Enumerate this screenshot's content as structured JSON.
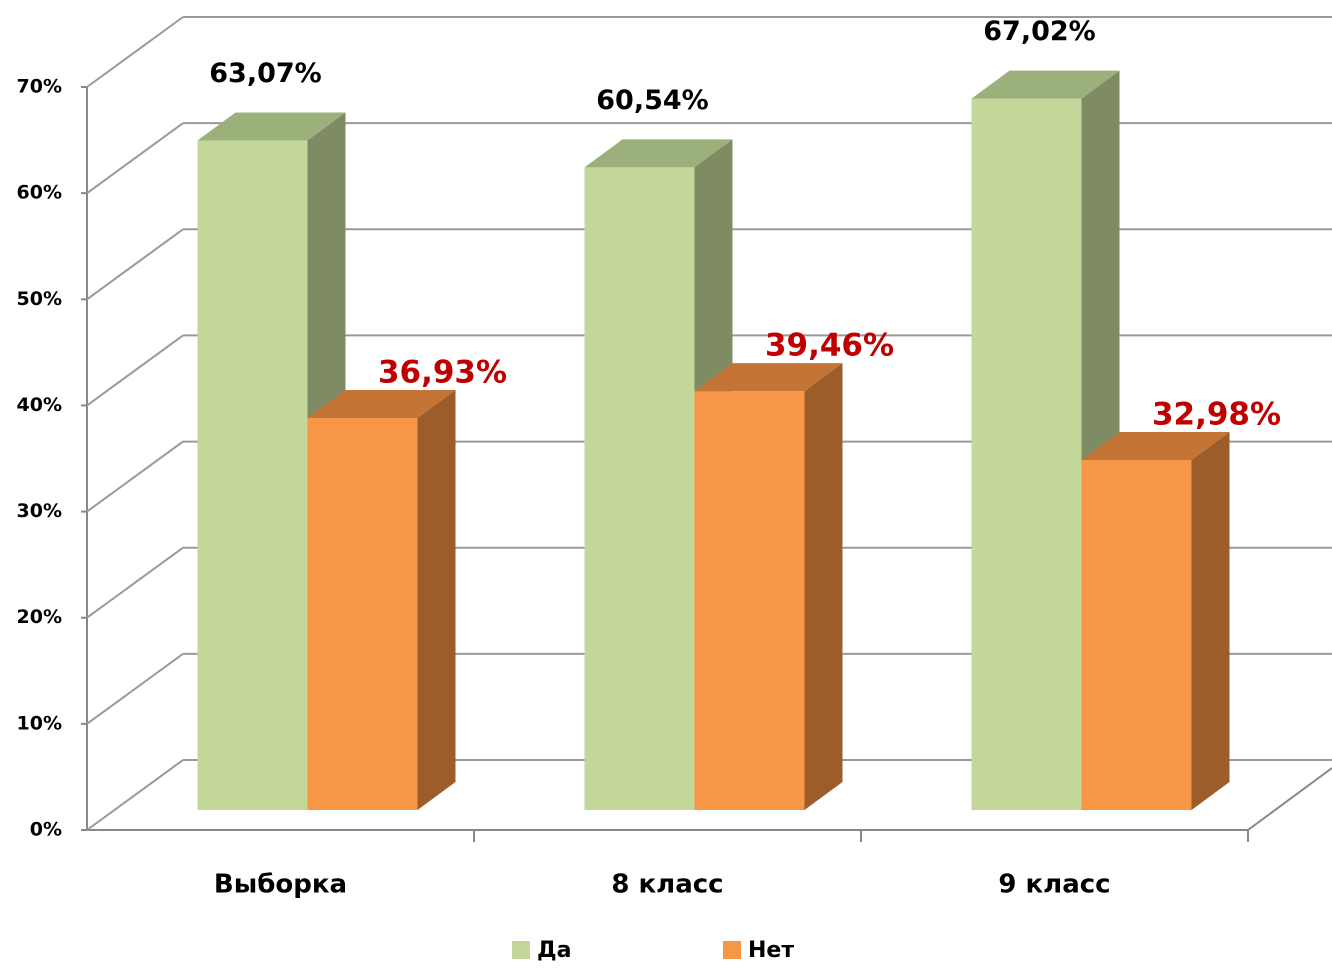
{
  "chart_data": {
    "type": "bar3d",
    "categories": [
      "Выборка",
      "8 класс",
      "9 класс"
    ],
    "series": [
      {
        "name": "Да",
        "color": "#c4d79b",
        "top_color": "#9bb07a",
        "side_color": "#7f8b62",
        "label_color": "#000000",
        "values": [
          63.07,
          60.54,
          67.02
        ],
        "value_labels": [
          "63,07%",
          "60,54%",
          "67,02%"
        ]
      },
      {
        "name": "Нет",
        "color": "#f79646",
        "top_color": "#c47535",
        "side_color": "#9c5d2a",
        "label_color": "#c00000",
        "values": [
          36.93,
          39.46,
          32.98
        ],
        "value_labels": [
          "36,93%",
          "39,46%",
          "32,98%"
        ]
      }
    ],
    "ylim": [
      0,
      70
    ],
    "yticks": [
      {
        "value": 0,
        "label": "0%"
      },
      {
        "value": 10,
        "label": "10%"
      },
      {
        "value": 20,
        "label": "20%"
      },
      {
        "value": 30,
        "label": "30%"
      },
      {
        "value": 40,
        "label": "40%"
      },
      {
        "value": 50,
        "label": "50%"
      },
      {
        "value": 60,
        "label": "60%"
      },
      {
        "value": 70,
        "label": "70%"
      }
    ],
    "grid": true,
    "legend": "bottom"
  }
}
